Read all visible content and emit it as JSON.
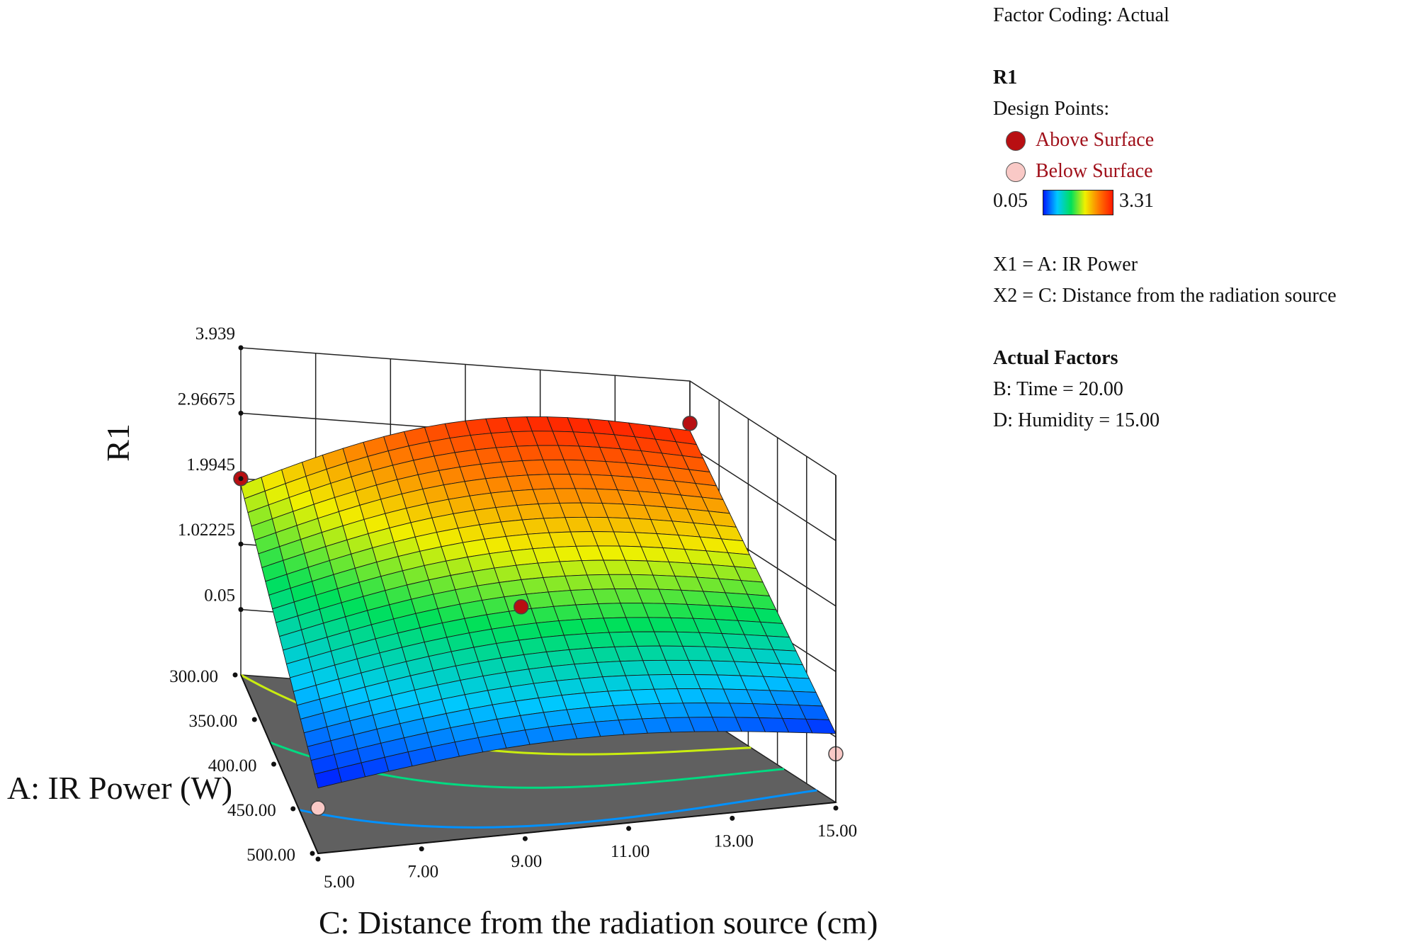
{
  "legend": {
    "factor_coding": "Factor Coding: Actual",
    "response": "R1",
    "design_points_label": "Design Points:",
    "above_label": "Above Surface",
    "below_label": "Below Surface",
    "colorbar_min": "0.05",
    "colorbar_max": "3.31",
    "x1_def": "X1 = A: IR Power",
    "x2_def": "X2 = C: Distance from the radiation source",
    "actual_factors_title": "Actual Factors",
    "factor_b": "B: Time = 20.00",
    "factor_d": "D: Humidity  = 15.00"
  },
  "colors": {
    "above": "#b80f12",
    "below": "#f9c9c6",
    "base_plane": "#606060",
    "gradient": [
      "#0018ff",
      "#00c8ff",
      "#00e05a",
      "#f0f000",
      "#ff7800",
      "#ff1800"
    ]
  },
  "chart_data": {
    "type": "surface",
    "xlabel": "A: IR Power (W)",
    "ylabel": "C: Distance from the radiation source (cm)",
    "zlabel": "R1",
    "x_ticks": [
      "300.00",
      "350.00",
      "400.00",
      "450.00",
      "500.00"
    ],
    "y_ticks": [
      "5.00",
      "7.00",
      "9.00",
      "11.00",
      "13.00",
      "15.00"
    ],
    "z_ticks": [
      "0.05",
      "1.02225",
      "1.9945",
      "2.96675",
      "3.939"
    ],
    "xlim": [
      300,
      500
    ],
    "ylim": [
      5,
      15
    ],
    "zlim": [
      -0.92225,
      3.939
    ],
    "color_range": [
      0.05,
      3.31
    ],
    "surface_corners": {
      "A300_C5": 1.9,
      "A300_C15": 3.2,
      "A500_C5": 0.05,
      "A500_C15": 0.1
    },
    "contours": [
      0.5,
      1.2,
      1.9,
      2.6
    ],
    "design_points": [
      {
        "A": 300,
        "C": 5,
        "R1": 1.9945,
        "position": "above"
      },
      {
        "A": 300,
        "C": 15,
        "R1": 3.31,
        "position": "above"
      },
      {
        "A": 400,
        "C": 10,
        "R1": 1.35,
        "position": "above"
      },
      {
        "A": 500,
        "C": 5,
        "R1": -0.25,
        "position": "below"
      },
      {
        "A": 500,
        "C": 15,
        "R1": -0.2,
        "position": "below"
      }
    ]
  }
}
